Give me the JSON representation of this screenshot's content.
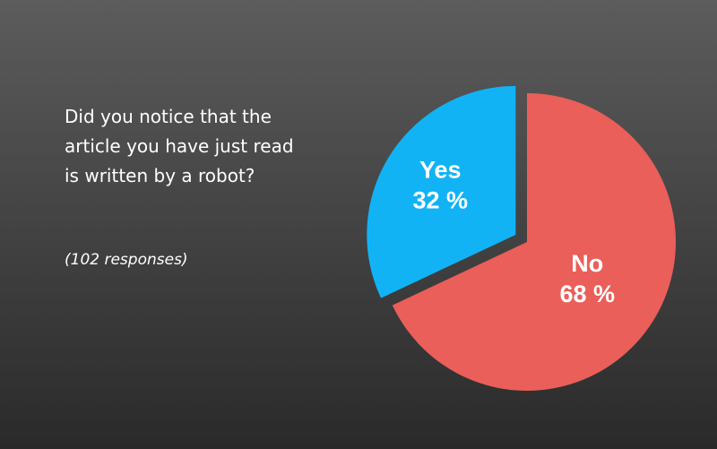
{
  "chart_data": {
    "type": "pie",
    "title": "Did you notice that the article you have just read is written by a robot?",
    "subtitle": "(102 responses)",
    "categories": [
      "No",
      "Yes"
    ],
    "values": [
      68,
      32
    ],
    "value_labels": [
      "68 %",
      "32 %"
    ],
    "colors": [
      "#ea5f59",
      "#12b3f5"
    ]
  }
}
